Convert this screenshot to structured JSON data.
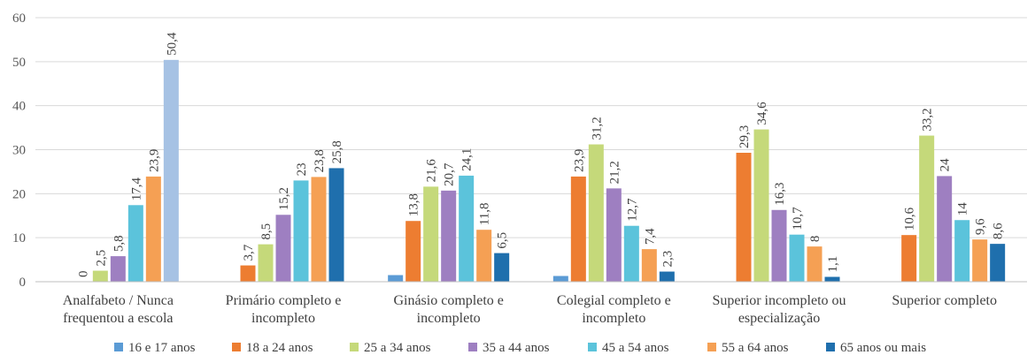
{
  "chart_data": {
    "type": "bar",
    "ylim": [
      0,
      60
    ],
    "yticks": [
      "0",
      "10",
      "20",
      "30",
      "40",
      "50",
      "60"
    ],
    "grid": true,
    "legend_position": "bottom",
    "categories": [
      [
        "Analfabeto / Nunca",
        "frequentou a escola"
      ],
      [
        "Primário completo e",
        "incompleto"
      ],
      [
        "Ginásio completo e",
        "incompleto"
      ],
      [
        "Colegial completo e",
        "incompleto"
      ],
      [
        "Superior incompleto ou",
        "especialização"
      ],
      [
        "Superior completo"
      ]
    ],
    "series": [
      {
        "name": "16 e 17 anos",
        "color": "#5b9bd5",
        "values": [
          null,
          null,
          1.5,
          1.3,
          null,
          null
        ],
        "labels": [
          "",
          "",
          "",
          "",
          "",
          ""
        ]
      },
      {
        "name": "18 a 24 anos",
        "color": "#ed7d31",
        "values": [
          null,
          3.7,
          13.8,
          23.9,
          29.3,
          10.6
        ],
        "labels": [
          "",
          "3,7",
          "13,8",
          "23,9",
          "29,3",
          "10,6"
        ]
      },
      {
        "name": "25 a 34 anos",
        "color": "#c5d97a",
        "values": [
          2.5,
          8.5,
          21.6,
          31.2,
          34.6,
          33.2
        ],
        "labels": [
          "2,5",
          "8,5",
          "21,6",
          "31,2",
          "34,6",
          "33,2"
        ]
      },
      {
        "name": "35 a 44 anos",
        "color": "#9e7fc1",
        "values": [
          5.8,
          15.2,
          20.7,
          21.2,
          16.3,
          24
        ],
        "labels": [
          "5,8",
          "15,2",
          "20,7",
          "21,2",
          "16,3",
          "24"
        ]
      },
      {
        "name": "45 a 54 anos",
        "color": "#5bc3db",
        "values": [
          17.4,
          23,
          24.1,
          12.7,
          10.7,
          14
        ],
        "labels": [
          "17,4",
          "23",
          "24,1",
          "12,7",
          "10,7",
          "14"
        ]
      },
      {
        "name": "55 a 64 anos",
        "color": "#f5a054",
        "values": [
          23.9,
          23.8,
          11.8,
          7.4,
          8,
          9.6
        ],
        "labels": [
          "23,9",
          "23,8",
          "11,8",
          "7,4",
          "8",
          "9,6"
        ]
      },
      {
        "name": "65 anos ou mais",
        "color": "#1f6fad",
        "values": [
          50.4,
          25.8,
          6.5,
          2.3,
          1.1,
          8.6
        ],
        "labels": [
          "50,4",
          "25,8",
          "6,5",
          "2,3",
          "1,1",
          "8,6"
        ]
      }
    ],
    "extra_labels": [
      {
        "category": 0,
        "series": 1,
        "text": "0"
      }
    ],
    "special_colors": [
      {
        "category": 0,
        "series": 6,
        "color": "#a6c2e4"
      }
    ]
  }
}
